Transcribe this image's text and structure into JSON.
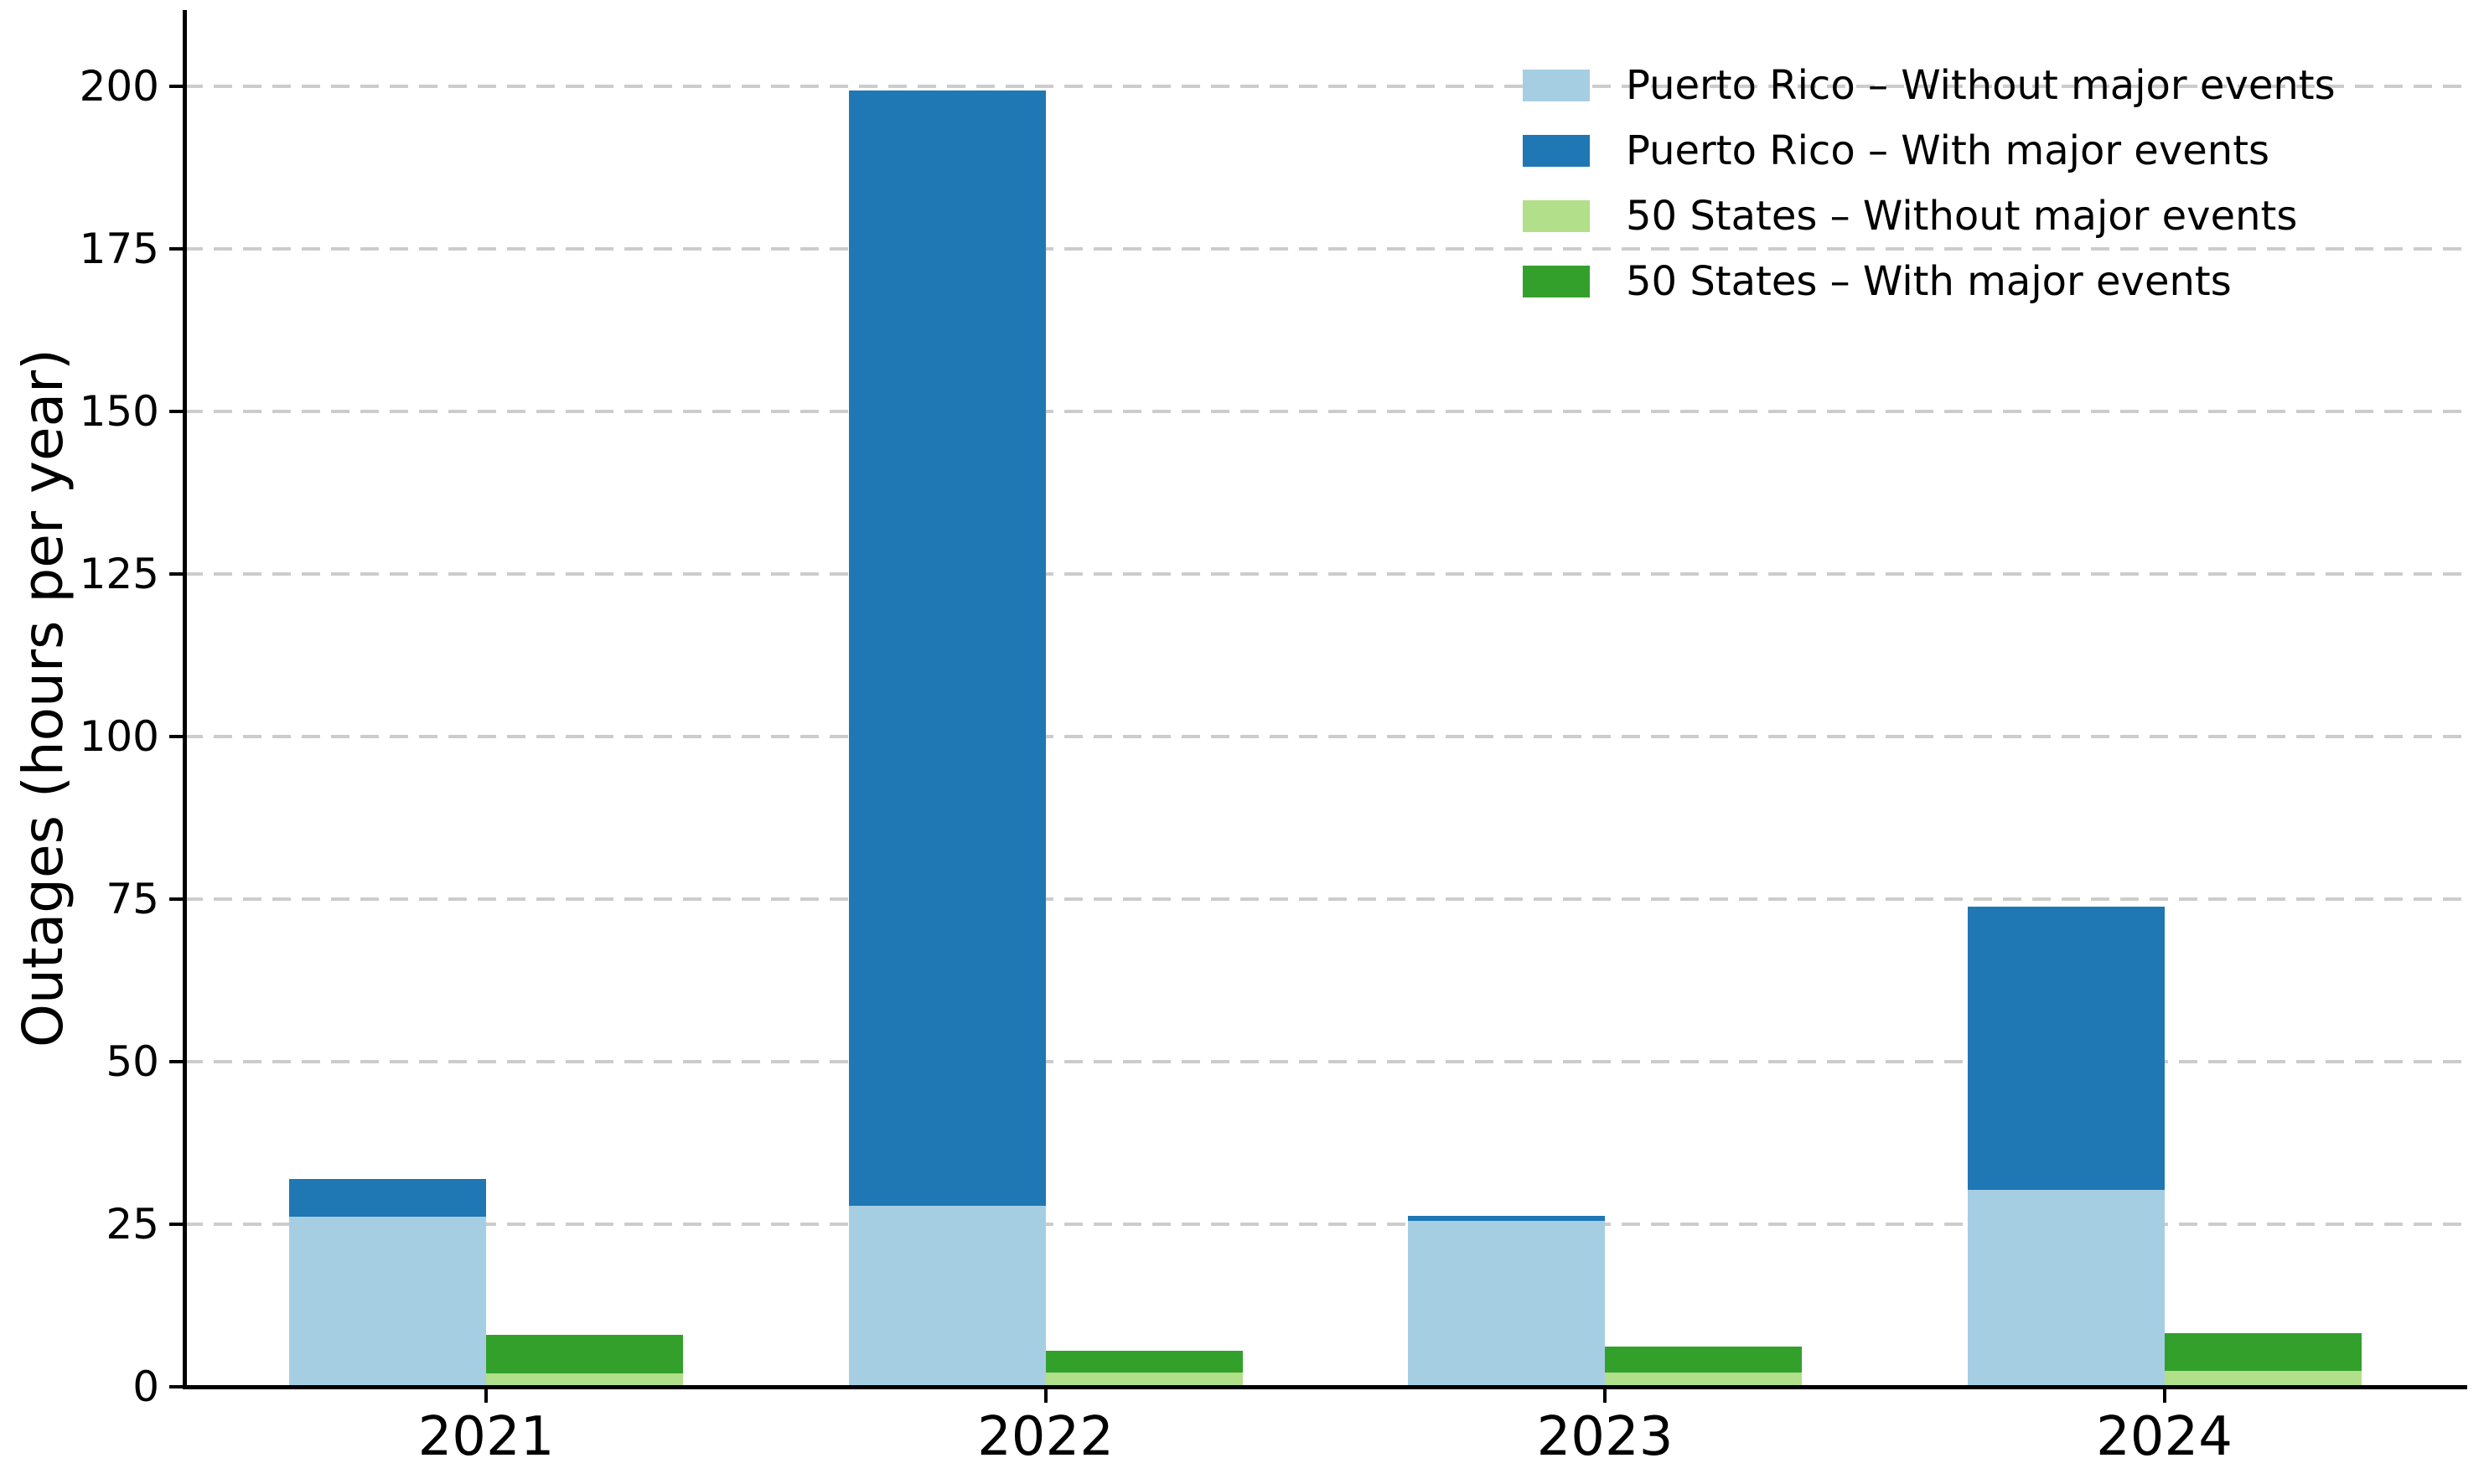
{
  "figure": {
    "background": "#ffffff"
  },
  "chart_data": {
    "type": "bar",
    "stacked": true,
    "note": "Each region is a stacked bar: the 'With major events' total is drawn as the darker segment above the lighter 'Without major events' portion.",
    "title": "",
    "xlabel": "",
    "ylabel": "Outages (hours per year)",
    "categories": [
      "2021",
      "2022",
      "2023",
      "2024"
    ],
    "series": [
      {
        "name": "Puerto Rico – Without major events",
        "group": "pr",
        "color": "#a6cee3",
        "values": [
          26.1,
          27.8,
          25.5,
          30.3
        ]
      },
      {
        "name": "Puerto Rico – With major events",
        "group": "pr",
        "color": "#1f77b4",
        "values": [
          31.9,
          199.3,
          26.3,
          73.8
        ]
      },
      {
        "name": "50 States – Without major events",
        "group": "states",
        "color": "#b2df8a",
        "values": [
          2.0,
          2.2,
          2.2,
          2.5
        ]
      },
      {
        "name": "50 States – With major events",
        "group": "states",
        "color": "#33a02c",
        "values": [
          8.0,
          5.5,
          6.2,
          8.3
        ]
      }
    ],
    "yticks": [
      "0",
      "25",
      "50",
      "75",
      "100",
      "125",
      "150",
      "175",
      "200"
    ],
    "ylim": [
      0,
      211
    ],
    "grid": {
      "axis": "y",
      "style": "dashed",
      "color": "#cccccc"
    },
    "legend": {
      "position": "upper right",
      "frame": false,
      "items": [
        {
          "label": "Puerto Rico – Without major events",
          "color": "#a6cee3"
        },
        {
          "label": "Puerto Rico – With major events",
          "color": "#1f77b4"
        },
        {
          "label": "50 States – Without major events",
          "color": "#b2df8a"
        },
        {
          "label": "50 States – With major events",
          "color": "#33a02c"
        }
      ]
    },
    "axis_color": "#000000",
    "text_color": "#000000"
  }
}
